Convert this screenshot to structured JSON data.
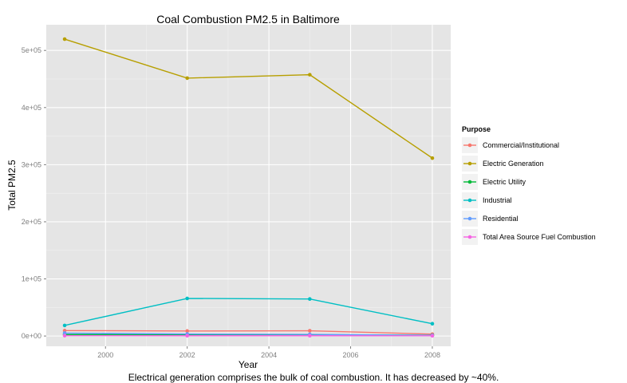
{
  "chart_data": {
    "type": "line",
    "title": "Coal Combustion PM2.5 in Baltimore",
    "xlabel": "Year",
    "ylabel": "Total PM2.5",
    "x": [
      1999,
      2002,
      2005,
      2008
    ],
    "xticks": [
      2000,
      2002,
      2004,
      2006,
      2008
    ],
    "xlim": [
      1998.55,
      2008.45
    ],
    "yticks": [
      0,
      100000,
      200000,
      300000,
      400000,
      500000
    ],
    "ytick_labels": [
      "0e+00",
      "1e+05",
      "2e+05",
      "3e+05",
      "4e+05",
      "5e+05"
    ],
    "ylim": [
      -18000,
      545000
    ],
    "grid": true,
    "legend_title": "Purpose",
    "legend_position": "right",
    "series": [
      {
        "name": "Commercial/Institutional",
        "color": "#F8766D",
        "values": [
          9500,
          8800,
          9200,
          3300
        ]
      },
      {
        "name": "Electric Generation",
        "color": "#B79F00",
        "values": [
          519800,
          451500,
          457500,
          311500
        ]
      },
      {
        "name": "Electric Utility",
        "color": "#00BA38",
        "values": [
          2600,
          2300,
          2400,
          1500
        ]
      },
      {
        "name": "Industrial",
        "color": "#00BFC4",
        "values": [
          18500,
          65800,
          64800,
          21500
        ]
      },
      {
        "name": "Residential",
        "color": "#619CFF",
        "values": [
          5200,
          3500,
          2800,
          1200
        ]
      },
      {
        "name": "Total Area Source Fuel Combustion",
        "color": "#F564E3",
        "values": [
          600,
          500,
          500,
          400
        ]
      }
    ]
  },
  "caption": "Electrical generation comprises the bulk of coal combustion. It has decreased by ~40%."
}
